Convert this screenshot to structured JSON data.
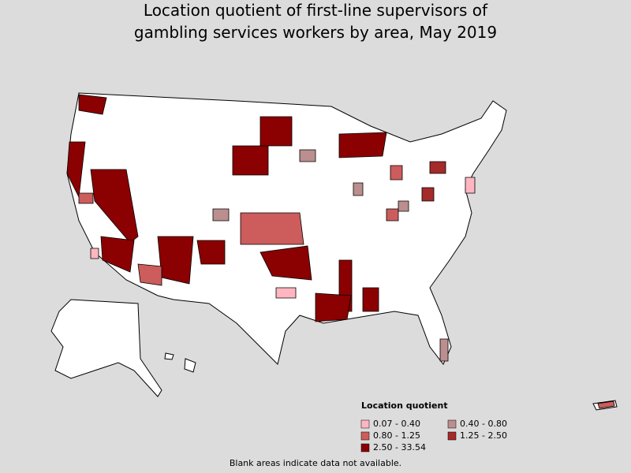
{
  "header": {
    "title_lines": [
      "Location quotient of first-line supervisors of",
      "gambling services workers by area, May 2019"
    ]
  },
  "legend": {
    "title": "Location quotient",
    "items": [
      {
        "label": "0.07 - 0.40",
        "color": "#ffb6c1"
      },
      {
        "label": "0.40 - 0.80",
        "color": "#bb8f8f"
      },
      {
        "label": "0.80 - 1.25",
        "color": "#cd5c5c"
      },
      {
        "label": "1.25 - 2.50",
        "color": "#a52a2a"
      },
      {
        "label": "2.50 - 33.54",
        "color": "#8b0000"
      }
    ]
  },
  "footnote": "Blank areas indicate data not available."
}
